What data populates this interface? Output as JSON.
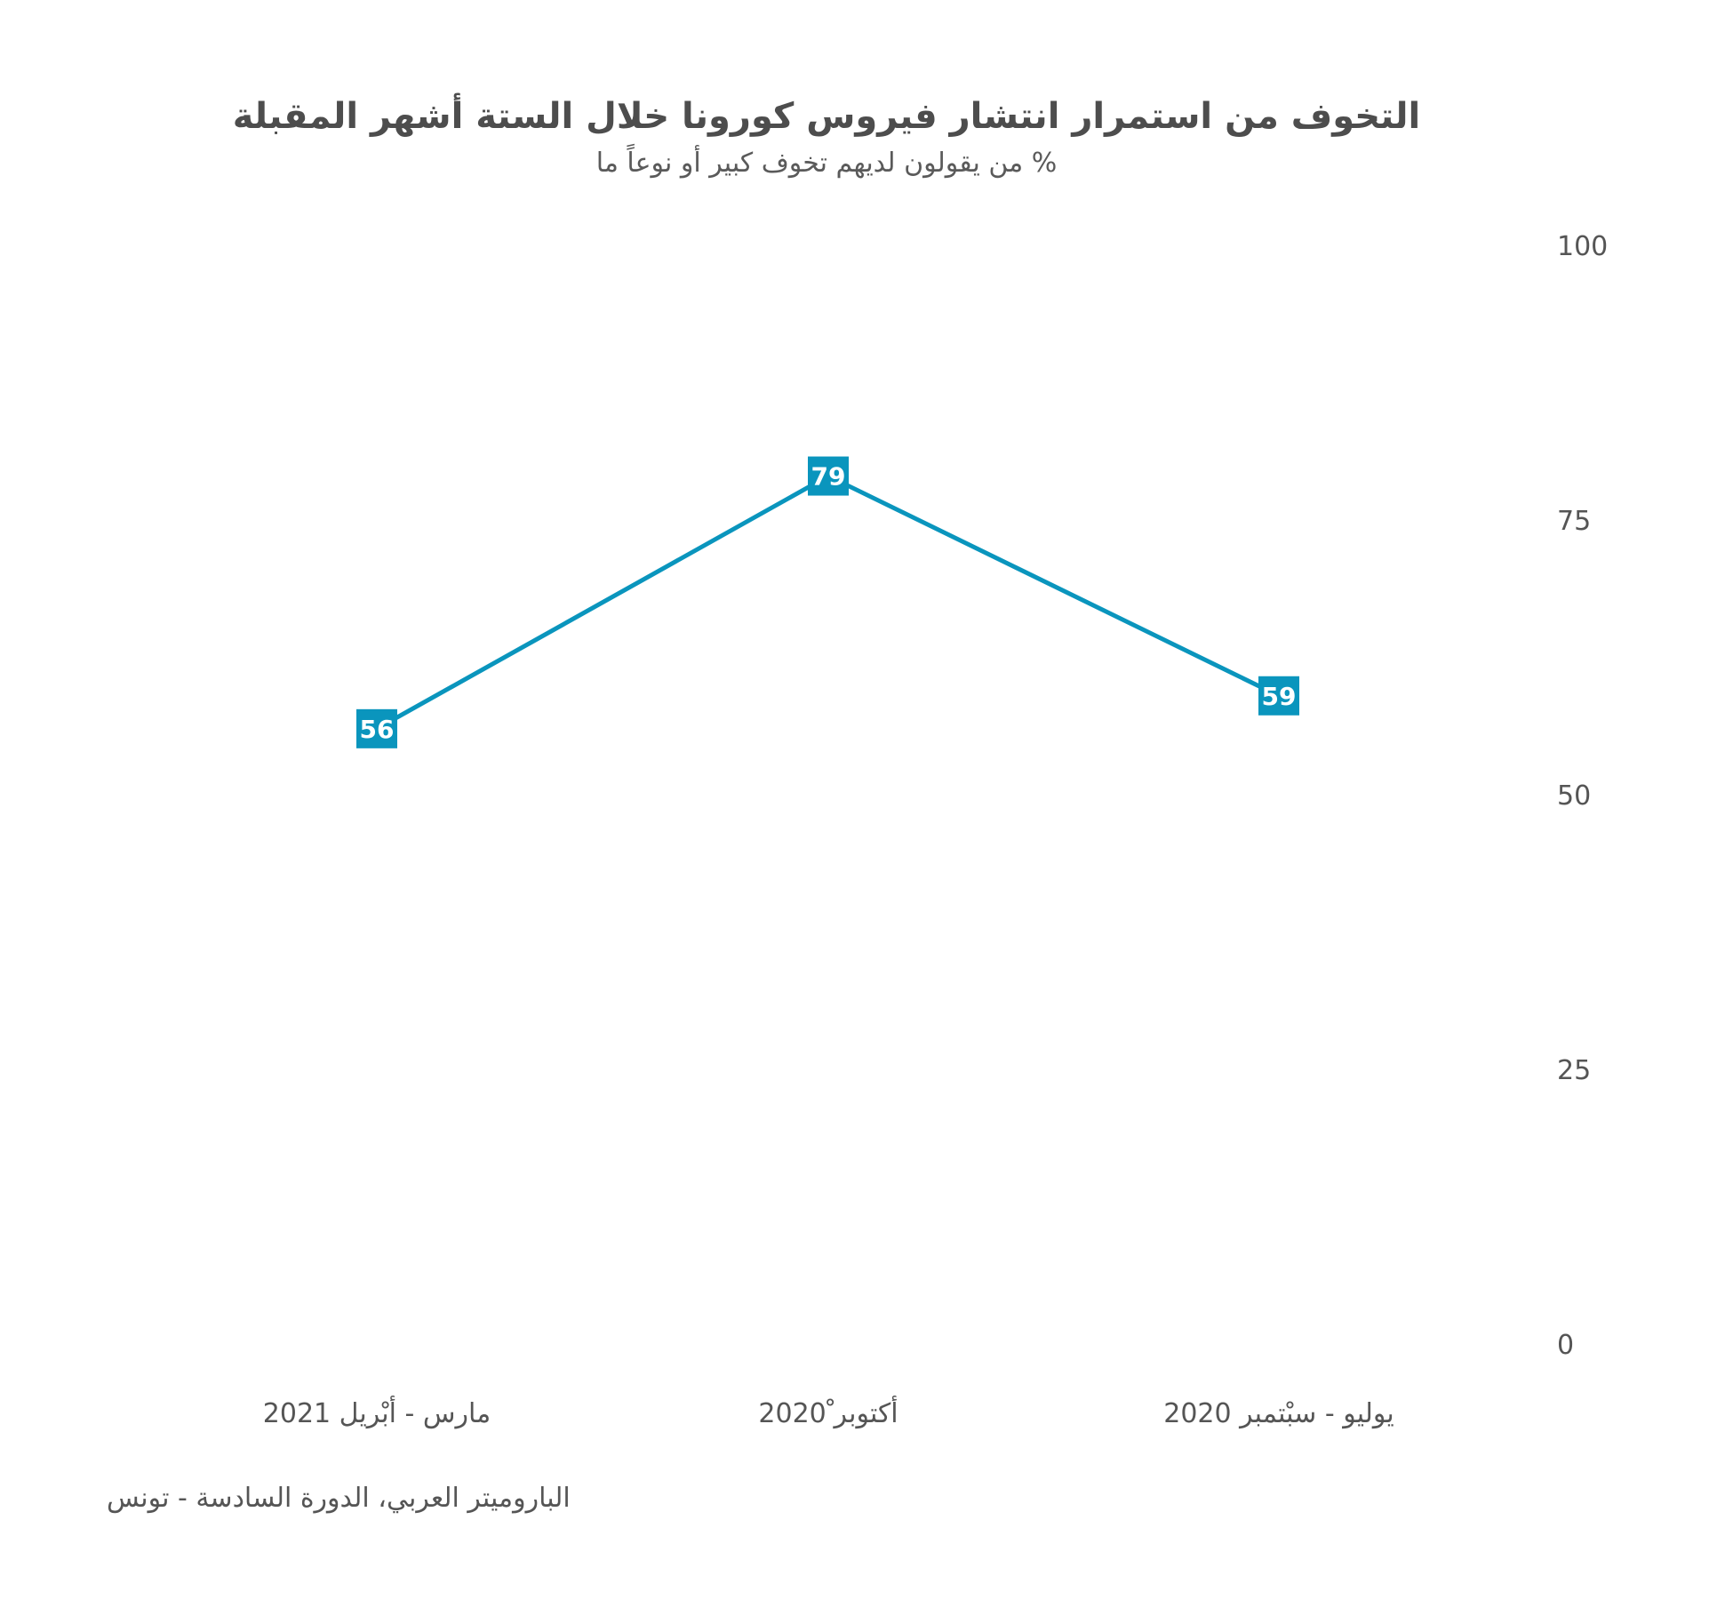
{
  "colors": {
    "series": "#0a95bd",
    "text": "#4d4d4d",
    "background": "#ffffff"
  },
  "chart_data": {
    "type": "line",
    "title": "التخوف من استمرار انتشار فيروس كورونا خلال الستة أشهر المقبلة",
    "subtitle": "% من يقولون لديهم تخوف كبير أو نوعاً ما",
    "categories": [
      "يوليو - سبْتمبر 2020",
      "أكتوبر ْ2020",
      "مارس - أبْريل 2021"
    ],
    "series": [
      {
        "values": [
          59,
          79,
          56
        ]
      }
    ],
    "ylim": [
      0,
      100
    ],
    "yticks": [
      0,
      25,
      50,
      75,
      100
    ],
    "y_axis_side": "right",
    "x_direction": "right-to-left",
    "grid": false,
    "legend": "none",
    "data_labels": true,
    "source": "الباروميتر العربي، الدورة السادسة - تونس"
  }
}
